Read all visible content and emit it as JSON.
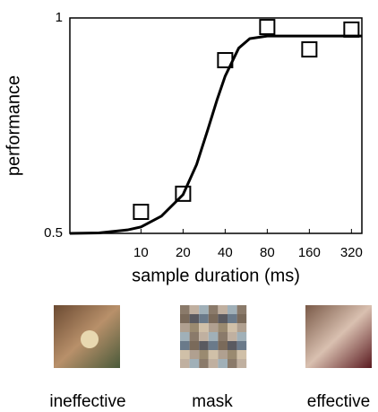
{
  "chart_data": {
    "type": "scatter",
    "x_label": "sample duration (ms)",
    "y_label": "performance",
    "log_x": true,
    "xlim": [
      3.1,
      380
    ],
    "ylim": [
      0.5,
      1
    ],
    "xticks": [
      10,
      20,
      40,
      80,
      160,
      320
    ],
    "yticks": [
      0.5,
      1
    ],
    "points": {
      "color": "#000000",
      "x": [
        10,
        20,
        40,
        80,
        160,
        320
      ],
      "y": [
        0.55,
        0.592,
        0.902,
        0.979,
        0.927,
        0.973
      ]
    },
    "fit": {
      "color": "#000000",
      "x": [
        3.1,
        5,
        8,
        10,
        14,
        20,
        25,
        30,
        35,
        40,
        50,
        60,
        80,
        160,
        380
      ],
      "values": [
        0.5,
        0.501,
        0.508,
        0.515,
        0.54,
        0.59,
        0.66,
        0.74,
        0.81,
        0.865,
        0.93,
        0.952,
        0.958,
        0.958,
        0.958
      ]
    }
  },
  "images": [
    {
      "label": "ineffective"
    },
    {
      "label": "mask"
    },
    {
      "label": "effective"
    }
  ]
}
